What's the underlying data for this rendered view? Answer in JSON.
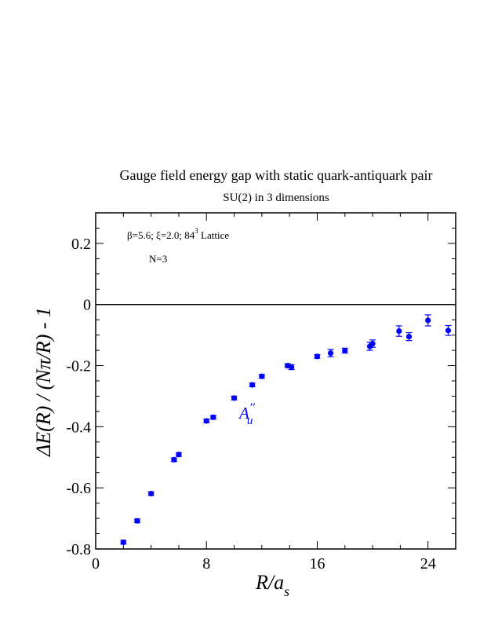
{
  "chart_data": {
    "type": "scatter",
    "title": "Gauge field energy gap with static quark-antiquark pair",
    "subtitle": "SU(2) in 3 dimensions",
    "xlabel_main": "R/a",
    "xlabel_sub": "s",
    "ylabel": "ΔE(R) / (Nπ/R) - 1",
    "xlim": [
      0,
      26
    ],
    "ylim": [
      -0.8,
      0.3
    ],
    "x_ticks": [
      0,
      8,
      16,
      24
    ],
    "x_tick_labels": [
      "0",
      "8",
      "16",
      "24"
    ],
    "y_ticks": [
      -0.8,
      -0.6,
      -0.4,
      -0.2,
      0,
      0.2
    ],
    "y_tick_labels": [
      "-0.8",
      "-0.6",
      "-0.4",
      "-0.2",
      "0",
      "0.2"
    ],
    "annotations": {
      "params_a": "β=5.6; ξ=2.0; 84",
      "params_sup": "3",
      "params_b": " Lattice",
      "n_label": "N=3",
      "series_label_main": "A",
      "series_label_primes": "′′",
      "series_label_sub": "u"
    },
    "reference_line": 0,
    "marker_color": "#0000ff",
    "series": [
      {
        "points": [
          {
            "x": 2.0,
            "y": -0.778,
            "err": 0.006
          },
          {
            "x": 3.0,
            "y": -0.708,
            "err": 0.006
          },
          {
            "x": 4.0,
            "y": -0.619,
            "err": 0.006
          },
          {
            "x": 5.66,
            "y": -0.508,
            "err": 0.006
          },
          {
            "x": 6.0,
            "y": -0.491,
            "err": 0.006
          },
          {
            "x": 8.0,
            "y": -0.381,
            "err": 0.006
          },
          {
            "x": 8.49,
            "y": -0.369,
            "err": 0.006
          },
          {
            "x": 10.0,
            "y": -0.306,
            "err": 0.006
          },
          {
            "x": 11.31,
            "y": -0.263,
            "err": 0.006
          },
          {
            "x": 12.0,
            "y": -0.235,
            "err": 0.006
          },
          {
            "x": 13.86,
            "y": -0.2,
            "err": 0.006
          },
          {
            "x": 14.14,
            "y": -0.205,
            "err": 0.008
          },
          {
            "x": 16.0,
            "y": -0.17,
            "err": 0.006
          },
          {
            "x": 16.97,
            "y": -0.159,
            "err": 0.012
          },
          {
            "x": 18.0,
            "y": -0.151,
            "err": 0.008
          },
          {
            "x": 19.8,
            "y": -0.137,
            "err": 0.013
          },
          {
            "x": 20.0,
            "y": -0.128,
            "err": 0.012
          },
          {
            "x": 21.91,
            "y": -0.087,
            "err": 0.017
          },
          {
            "x": 22.63,
            "y": -0.105,
            "err": 0.013
          },
          {
            "x": 24.0,
            "y": -0.052,
            "err": 0.018
          },
          {
            "x": 25.46,
            "y": -0.085,
            "err": 0.016
          }
        ]
      }
    ]
  }
}
